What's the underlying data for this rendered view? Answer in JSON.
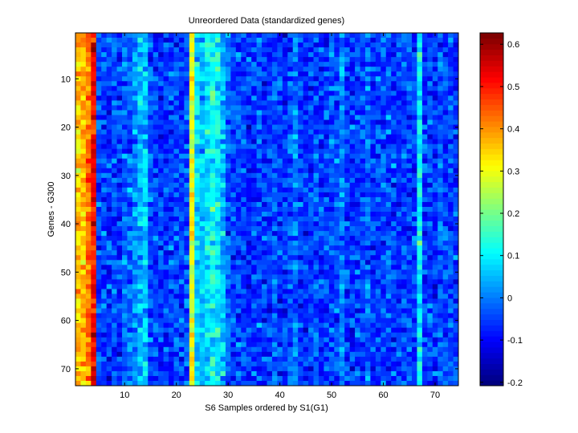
{
  "chart_data": {
    "type": "heatmap",
    "title": "Unreordered Data (standardized genes)",
    "xlabel": "S6 Samples ordered by S1(G1)",
    "ylabel": "Genes - G300",
    "n_columns": 74,
    "n_rows": 73,
    "xlim": [
      0.5,
      74.5
    ],
    "ylim": [
      0.5,
      73.5
    ],
    "x_ticks": [
      10,
      20,
      30,
      40,
      50,
      60,
      70
    ],
    "y_ticks": [
      10,
      20,
      30,
      40,
      50,
      60,
      70
    ],
    "colormap": "jet",
    "clim": [
      -0.208,
      0.627
    ],
    "colorbar_ticks": [
      0.6,
      0.5,
      0.4,
      0.3,
      0.2,
      0.1,
      0,
      -0.1,
      -0.2
    ],
    "colorbar_tick_labels": [
      "0.6",
      "0.5",
      "0.4",
      "0.3",
      "0.2",
      "0.1",
      "0",
      "-0.1",
      "-0.2"
    ],
    "column_mean_values": [
      0.36,
      0.37,
      0.42,
      0.52,
      -0.04,
      -0.05,
      -0.06,
      -0.04,
      -0.05,
      -0.03,
      -0.02,
      0.0,
      0.05,
      0.07,
      -0.03,
      -0.05,
      -0.06,
      -0.05,
      -0.06,
      -0.04,
      -0.05,
      -0.03,
      0.3,
      0.08,
      0.06,
      0.09,
      0.12,
      0.1,
      0.05,
      -0.02,
      -0.05,
      -0.04,
      -0.05,
      -0.06,
      -0.05,
      -0.04,
      -0.06,
      -0.05,
      -0.03,
      -0.05,
      -0.06,
      -0.04,
      0.0,
      -0.05,
      -0.06,
      -0.05,
      -0.04,
      -0.06,
      -0.05,
      -0.03,
      -0.04,
      0.0,
      -0.05,
      -0.06,
      -0.05,
      -0.04,
      -0.02,
      -0.06,
      -0.05,
      -0.04,
      -0.03,
      -0.05,
      -0.06,
      -0.04,
      -0.05,
      -0.05,
      0.1,
      -0.05,
      -0.04,
      -0.06,
      -0.03,
      -0.05,
      -0.04,
      -0.05
    ],
    "cell_noise_std": 0.06
  }
}
